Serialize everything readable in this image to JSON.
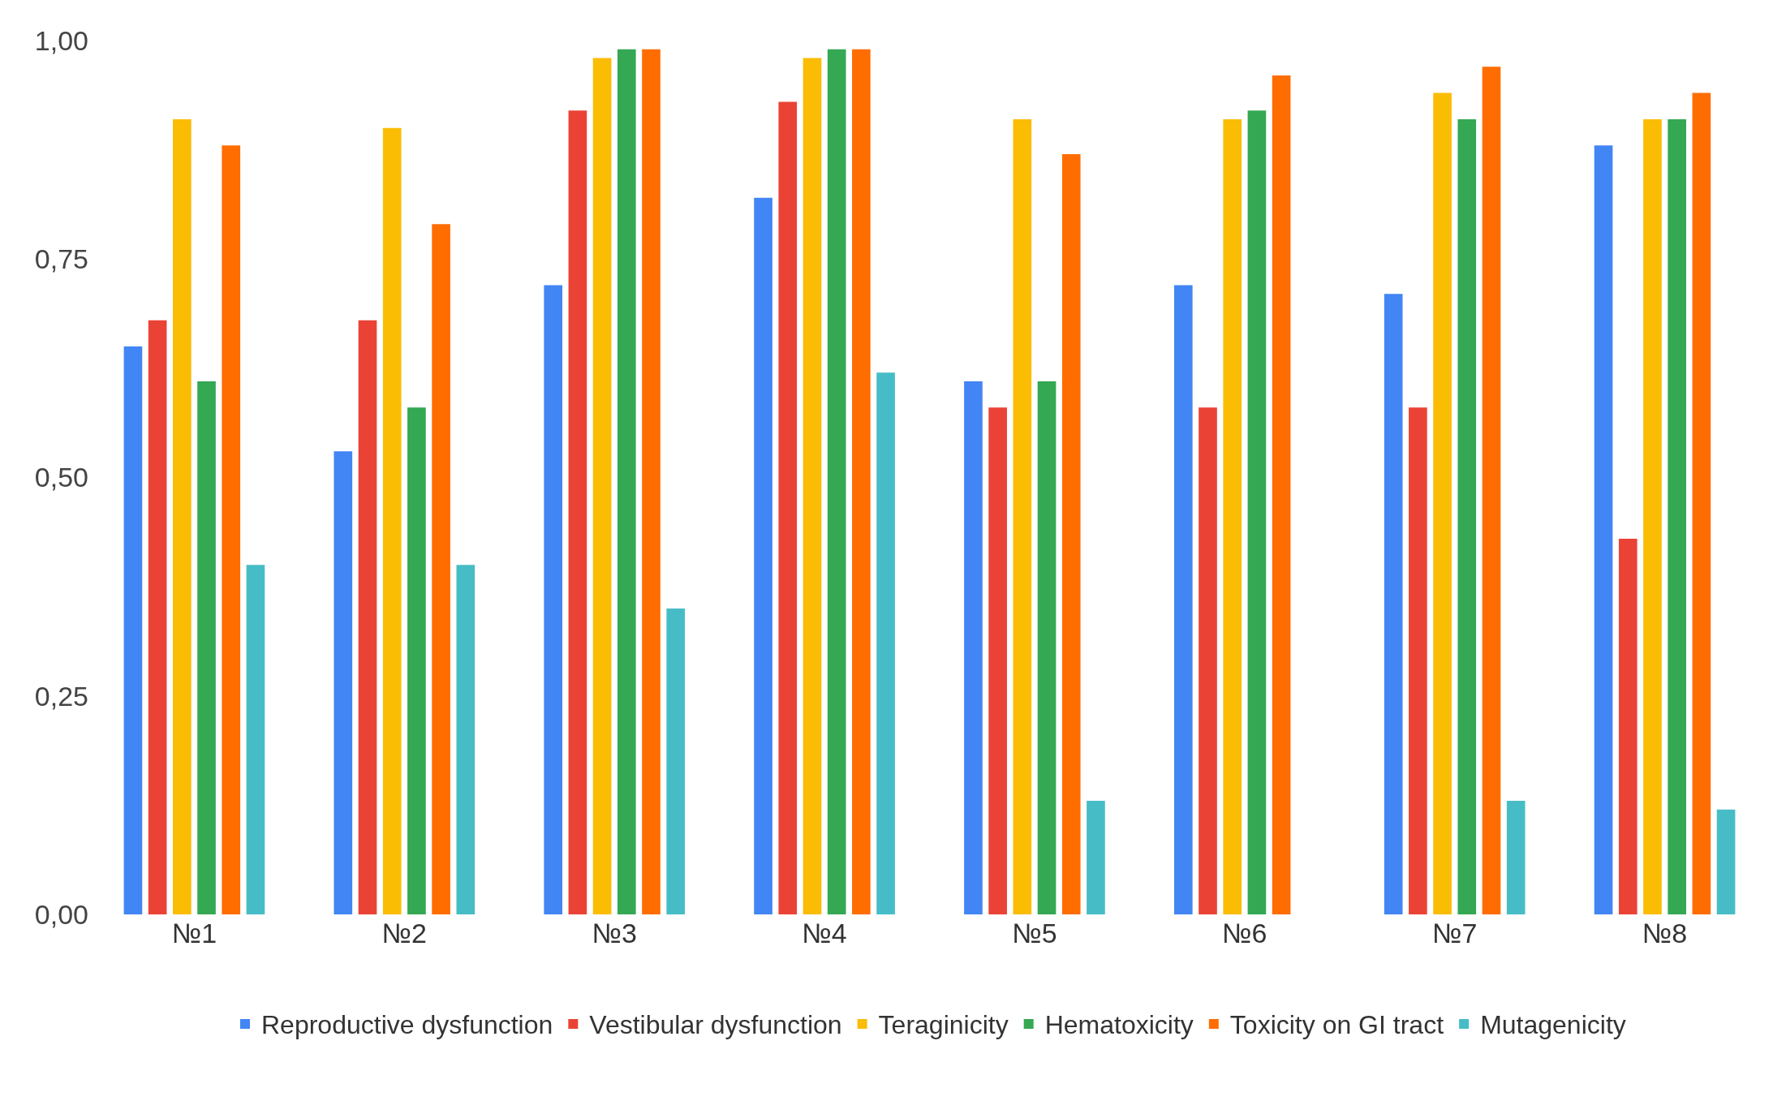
{
  "chart_data": {
    "type": "bar",
    "categories": [
      "№1",
      "№2",
      "№3",
      "№4",
      "№5",
      "№6",
      "№7",
      "№8"
    ],
    "series": [
      {
        "name": "Reproductive dysfunction",
        "color": "#4285f4",
        "values": [
          0.65,
          0.53,
          0.72,
          0.82,
          0.61,
          0.72,
          0.71,
          0.88
        ]
      },
      {
        "name": "Vestibular dysfunction",
        "color": "#ea4335",
        "values": [
          0.68,
          0.68,
          0.92,
          0.93,
          0.58,
          0.58,
          0.58,
          0.43
        ]
      },
      {
        "name": "Teraginicity",
        "color": "#fbbc04",
        "values": [
          0.91,
          0.9,
          0.98,
          0.98,
          0.91,
          0.91,
          0.94,
          0.91
        ]
      },
      {
        "name": "Hematoxicity",
        "color": "#34a853",
        "values": [
          0.61,
          0.58,
          0.99,
          0.99,
          0.61,
          0.92,
          0.91,
          0.91
        ]
      },
      {
        "name": "Toxicity on GI tract",
        "color": "#ff6d01",
        "values": [
          0.88,
          0.79,
          0.99,
          0.99,
          0.87,
          0.96,
          0.97,
          0.94
        ]
      },
      {
        "name": "Mutagenicity",
        "color": "#46bdc6",
        "values": [
          0.4,
          0.4,
          0.35,
          0.62,
          0.13,
          null,
          0.13,
          0.12
        ]
      }
    ],
    "ylim": [
      0,
      1
    ],
    "yticks": [
      {
        "value": 0,
        "label": "0,00"
      },
      {
        "value": 0.25,
        "label": "0,25"
      },
      {
        "value": 0.5,
        "label": "0,50"
      },
      {
        "value": 0.75,
        "label": "0,75"
      },
      {
        "value": 1,
        "label": "1,00"
      }
    ],
    "legend": "bottom"
  }
}
